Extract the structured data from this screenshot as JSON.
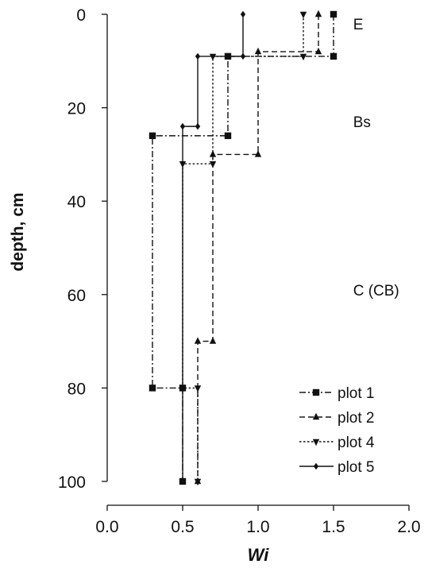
{
  "chart_data": {
    "type": "line",
    "title": "",
    "xlabel": "Wi",
    "ylabel": "depth, cm",
    "xlim": [
      0.0,
      2.0
    ],
    "ylim": [
      0,
      100
    ],
    "y_inverted": true,
    "x_axis_position": "bottom",
    "x_ticks": [
      "0.0",
      "0.5",
      "1.0",
      "1.5",
      "2.0"
    ],
    "y_ticks": [
      "0",
      "20",
      "40",
      "60",
      "80",
      "100"
    ],
    "grid": false,
    "legend_position": "bottom-right",
    "annotations": [
      {
        "text": "E",
        "x": 1.63,
        "depth": 2
      },
      {
        "text": "Bs",
        "x": 1.63,
        "depth": 23
      },
      {
        "text": "C (CB)",
        "x": 1.63,
        "depth": 59
      }
    ],
    "series": [
      {
        "name": "plot 1",
        "line_style": "dash-dot",
        "marker": "square",
        "points": [
          [
            1.5,
            0
          ],
          [
            1.5,
            9
          ],
          [
            0.8,
            9
          ],
          [
            0.8,
            26
          ],
          [
            0.3,
            26
          ],
          [
            0.3,
            80
          ],
          [
            0.5,
            80
          ],
          [
            0.5,
            100
          ]
        ]
      },
      {
        "name": "plot 2",
        "line_style": "long-dash",
        "marker": "triangle-up",
        "points": [
          [
            1.4,
            0
          ],
          [
            1.4,
            8
          ],
          [
            1.0,
            8
          ],
          [
            1.0,
            30
          ],
          [
            0.7,
            30
          ],
          [
            0.7,
            70
          ],
          [
            0.6,
            70
          ],
          [
            0.6,
            100
          ]
        ]
      },
      {
        "name": "plot 4",
        "line_style": "dotted",
        "marker": "triangle-down",
        "points": [
          [
            1.3,
            0
          ],
          [
            1.3,
            9
          ],
          [
            0.7,
            9
          ],
          [
            0.7,
            32
          ],
          [
            0.5,
            32
          ],
          [
            0.5,
            80
          ],
          [
            0.6,
            80
          ],
          [
            0.6,
            100
          ]
        ]
      },
      {
        "name": "plot 5",
        "line_style": "solid",
        "marker": "diamond",
        "points": [
          [
            0.9,
            0
          ],
          [
            0.9,
            9
          ],
          [
            0.6,
            9
          ],
          [
            0.6,
            24
          ],
          [
            0.5,
            24
          ],
          [
            0.5,
            100
          ]
        ]
      }
    ]
  }
}
